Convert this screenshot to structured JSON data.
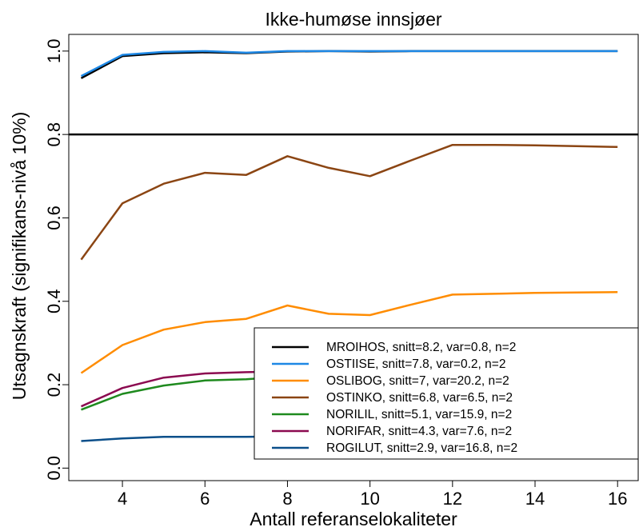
{
  "chart_data": {
    "type": "line",
    "title": "Ikke-humøse innsjøer",
    "xlabel": "Antall referanselokaliteter",
    "ylabel": "Utsagnskraft (signifikans-nivå 10%)",
    "xlim": [
      2.7,
      16.5
    ],
    "ylim": [
      -0.03,
      1.04
    ],
    "x_ticks": [
      "4",
      "6",
      "8",
      "10",
      "12",
      "14",
      "16"
    ],
    "y_ticks": [
      "0.0",
      "0.2",
      "0.4",
      "0.6",
      "0.8",
      "1.0"
    ],
    "reference_line": {
      "y": 0.8,
      "color": "#000000"
    },
    "grid": false,
    "legend_position": "bottom-right",
    "x": [
      3,
      4,
      5,
      6,
      7,
      8,
      9,
      10,
      11,
      12,
      13,
      14,
      15,
      16
    ],
    "series": [
      {
        "name": "MROIHOS, snitt=8.2, var=0.8, n=2",
        "color": "#000000",
        "values": [
          0.935,
          0.988,
          0.995,
          0.997,
          0.995,
          0.999,
          1.0,
          0.999,
          1.0,
          1.0,
          1.0,
          1.0,
          1.0,
          1.0
        ]
      },
      {
        "name": "OSTIISE, snitt=7.8, var=0.2, n=2",
        "color": "#1e88e5",
        "values": [
          0.94,
          0.991,
          0.998,
          1.0,
          0.996,
          1.0,
          1.0,
          1.0,
          1.0,
          1.0,
          1.0,
          1.0,
          1.0,
          1.0
        ]
      },
      {
        "name": "OSLIBOG, snitt=7, var=20.2, n=2",
        "color": "#ff8c00",
        "values": [
          0.228,
          0.295,
          0.332,
          0.35,
          0.358,
          0.39,
          0.37,
          0.367,
          0.392,
          0.416,
          0.418,
          0.42,
          0.421,
          0.422
        ]
      },
      {
        "name": "OSTINKO, snitt=6.8, var=6.5, n=2",
        "color": "#8b4513",
        "values": [
          0.5,
          0.635,
          0.682,
          0.708,
          0.703,
          0.748,
          0.72,
          0.7,
          0.738,
          0.775,
          0.775,
          0.774,
          0.772,
          0.77
        ]
      },
      {
        "name": "NORILIL, snitt=5.1, var=15.9, n=2",
        "color": "#1e8a1e",
        "values": [
          0.14,
          0.178,
          0.198,
          0.21,
          0.213,
          0.22,
          0.22,
          0.222,
          0.222,
          0.223,
          0.224,
          0.224,
          0.225,
          0.225
        ]
      },
      {
        "name": "NORIFAR, snitt=4.3, var=7.6, n=2",
        "color": "#8b0a50",
        "values": [
          0.148,
          0.192,
          0.217,
          0.227,
          0.23,
          0.232,
          0.233,
          0.234,
          0.234,
          0.235,
          0.235,
          0.235,
          0.235,
          0.235
        ]
      },
      {
        "name": "ROGILUT, snitt=2.9, var=16.8, n=2",
        "color": "#0b4f8a",
        "values": [
          0.065,
          0.071,
          0.075,
          0.075,
          0.075,
          0.076,
          0.076,
          0.076,
          0.076,
          0.077,
          0.077,
          0.077,
          0.077,
          0.077
        ]
      }
    ]
  }
}
